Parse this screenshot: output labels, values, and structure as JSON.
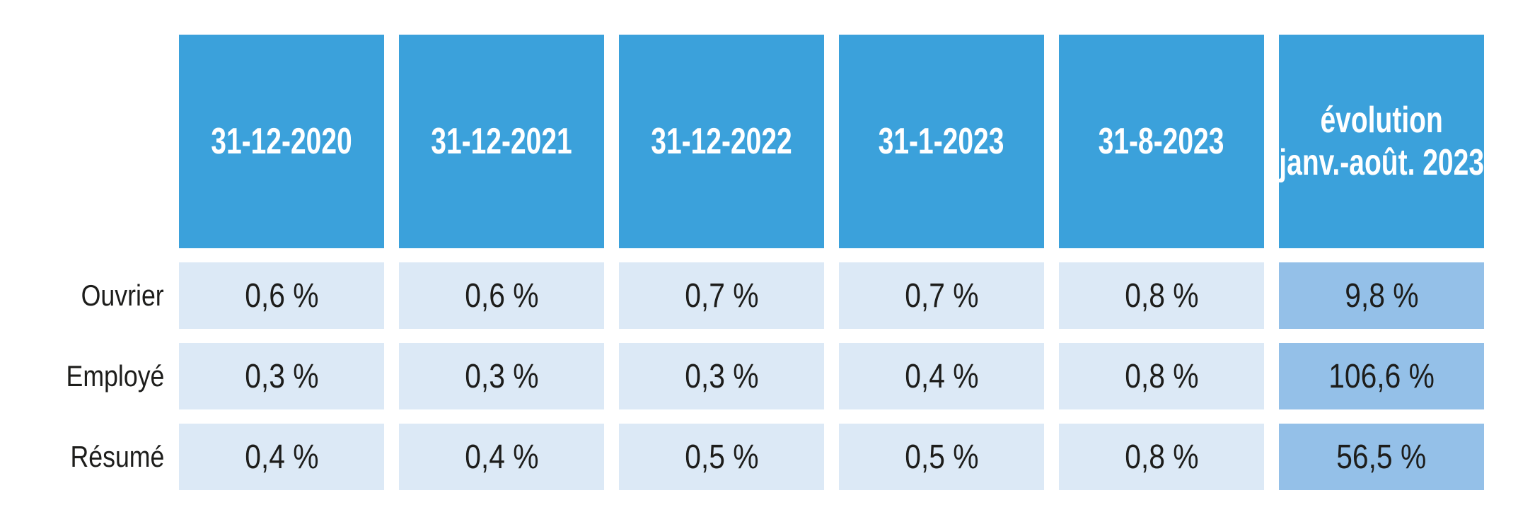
{
  "chart_data": {
    "type": "table",
    "columns": [
      "31-12-2020",
      "31-12-2021",
      "31-12-2022",
      "31-1-2023",
      "31-8-2023",
      "évolution janv.-août. 2023"
    ],
    "evolution_header_lines": [
      "évolution",
      "janv.-août. 2023"
    ],
    "rows": [
      {
        "label": "Ouvrier",
        "values": [
          "0,6 %",
          "0,6 %",
          "0,7 %",
          "0,7 %",
          "0,8 %",
          "9,8 %"
        ]
      },
      {
        "label": "Employé",
        "values": [
          "0,3 %",
          "0,3 %",
          "0,3 %",
          "0,4 %",
          "0,8 %",
          "106,6 %"
        ]
      },
      {
        "label": "Résumé",
        "values": [
          "0,4 %",
          "0,4 %",
          "0,5 %",
          "0,5 %",
          "0,8 %",
          "56,5 %"
        ]
      }
    ],
    "colors": {
      "header_bg": "#3BA1DB",
      "cell_bg": "#DCE9F6",
      "evolution_cell_bg": "#94C0E8",
      "header_text": "#FFFFFF",
      "body_text": "#1D1D1B"
    },
    "layout": {
      "legend": "none",
      "grid": "off"
    }
  }
}
